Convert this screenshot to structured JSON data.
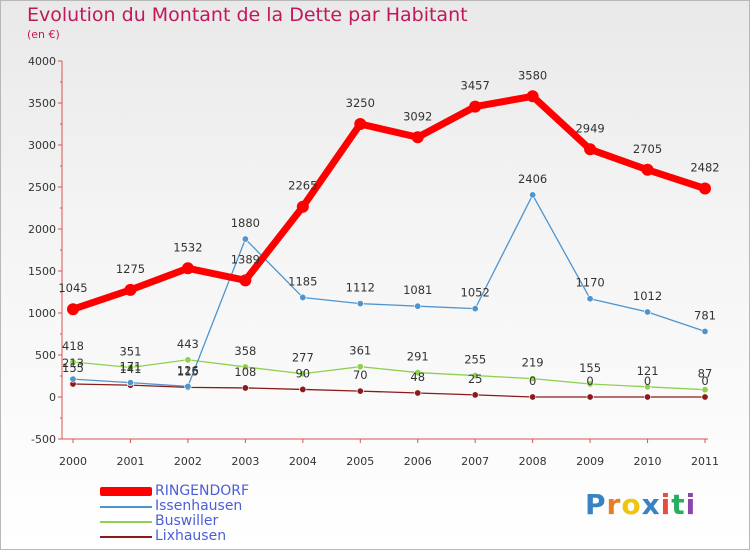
{
  "title": "Evolution du Montant de la Dette par Habitant",
  "subtitle": "(en €)",
  "brand": {
    "letters": [
      "P",
      "r",
      "o",
      "x",
      "i",
      "t",
      "i"
    ],
    "colors": [
      "#3b82c4",
      "#e67e22",
      "#f1c40f",
      "#3b82c4",
      "#e74c3c",
      "#27ae60",
      "#8e44ad"
    ]
  },
  "chart_data": {
    "type": "line",
    "x": [
      "2000",
      "2001",
      "2002",
      "2003",
      "2004",
      "2005",
      "2006",
      "2007",
      "2008",
      "2009",
      "2010",
      "2011"
    ],
    "ylim": [
      -500,
      4000
    ],
    "yticks": [
      "-500",
      "0",
      "500",
      "1000",
      "1500",
      "2000",
      "2500",
      "3000",
      "3500",
      "4000"
    ],
    "ytick_values": [
      -500,
      0,
      500,
      1000,
      1500,
      2000,
      2500,
      3000,
      3500,
      4000
    ],
    "grid": false,
    "legend_position": "bottom-left",
    "series": [
      {
        "name": "RINGENDORF",
        "color": "#ff0000",
        "values": [
          1045,
          1275,
          1532,
          1389,
          2265,
          3250,
          3092,
          3457,
          3580,
          2949,
          2705,
          2482
        ],
        "labels": [
          "1045",
          "1275",
          "1532",
          "1389",
          "2265",
          "3250",
          "3092",
          "3457",
          "3580",
          "2949",
          "2705",
          "2482"
        ]
      },
      {
        "name": "Issenhausen",
        "color": "#4f94cd",
        "values": [
          213,
          171,
          126,
          1880,
          1185,
          1112,
          1081,
          1052,
          2406,
          1170,
          1012,
          781
        ],
        "labels": [
          "213",
          "171",
          "126",
          "1880",
          "1185",
          "1112",
          "1081",
          "1052",
          "2406",
          "1170",
          "1012",
          "781"
        ]
      },
      {
        "name": "Buswiller",
        "color": "#8fd14f",
        "values": [
          418,
          351,
          443,
          358,
          277,
          361,
          291,
          255,
          219,
          155,
          121,
          87
        ],
        "labels": [
          "418",
          "351",
          "443",
          "358",
          "277",
          "361",
          "291",
          "255",
          "219",
          "155",
          "121",
          "87"
        ]
      },
      {
        "name": "Lixhausen",
        "color": "#8b1a1a",
        "values": [
          155,
          141,
          115,
          108,
          90,
          70,
          48,
          25,
          0,
          0,
          0,
          0
        ],
        "labels": [
          "155",
          "141",
          "115",
          "108",
          "90",
          "70",
          "48",
          "25",
          "0",
          "0",
          "0",
          "0"
        ]
      }
    ]
  }
}
